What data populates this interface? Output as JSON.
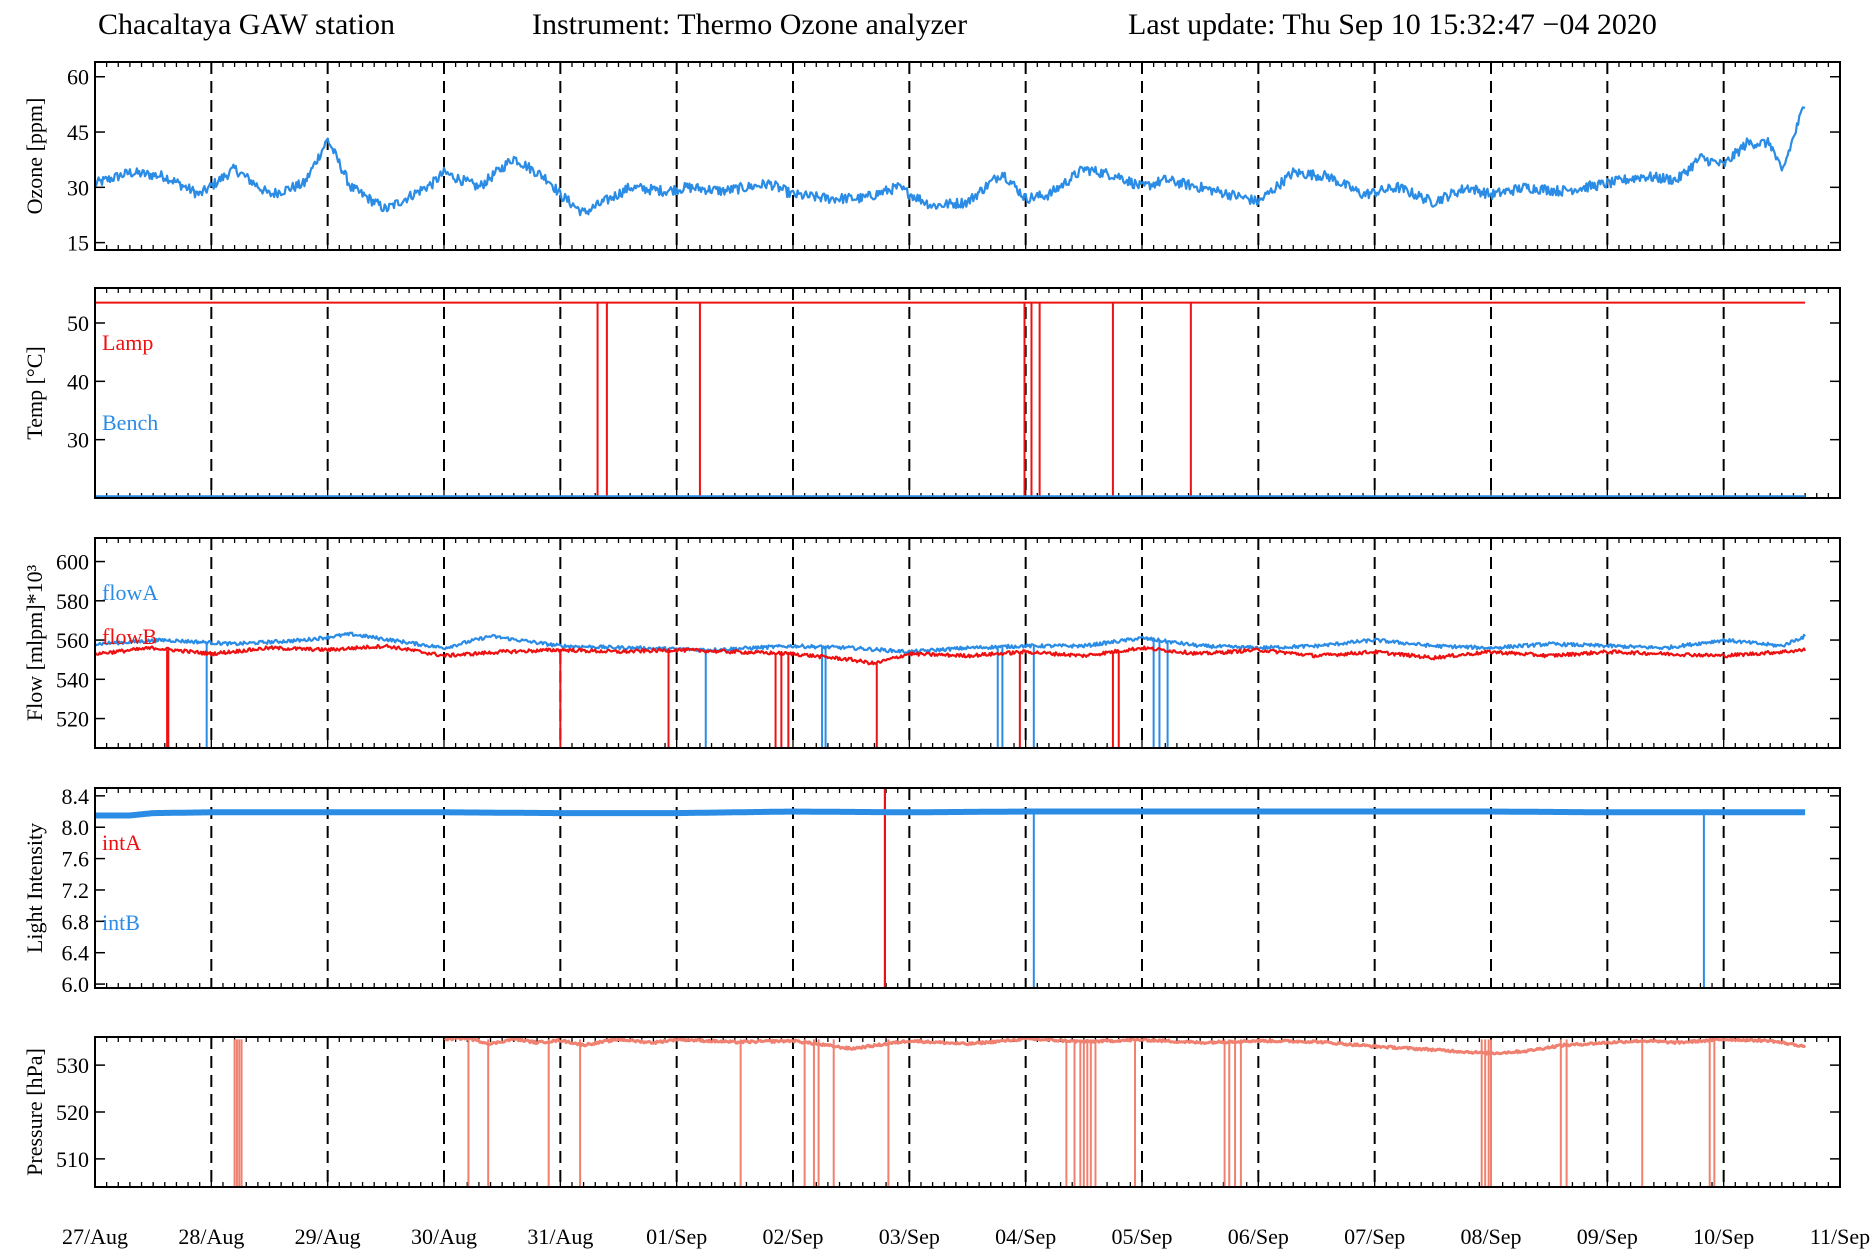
{
  "header": {
    "station": "Chacaltaya GAW station",
    "instrument": "Instrument: Thermo Ozone analyzer",
    "last_update": "Last update: Thu Sep 10 15:32:47 −04 2020"
  },
  "colors": {
    "blue": "#2b8ce6",
    "red": "#ee1111",
    "salmon": "#f08070",
    "grid": "#000000"
  },
  "x_ticks": [
    "27/Aug",
    "28/Aug",
    "29/Aug",
    "30/Aug",
    "31/Aug",
    "01/Sep",
    "02/Sep",
    "03/Sep",
    "04/Sep",
    "05/Sep",
    "06/Sep",
    "07/Sep",
    "08/Sep",
    "09/Sep",
    "10/Sep",
    "11/Sep"
  ],
  "chart_data": [
    {
      "type": "line",
      "ylabel": "Ozone [ppm]",
      "ylim": [
        13,
        64
      ],
      "yticks": [
        15,
        30,
        45,
        60
      ],
      "x_unit": "days since 27/Aug",
      "xlim": [
        0,
        15
      ],
      "series": [
        {
          "color": "blue",
          "noise": 1.4,
          "x": [
            0,
            0.3,
            0.6,
            0.9,
            1.2,
            1.5,
            1.8,
            2.0,
            2.2,
            2.5,
            2.9,
            3.0,
            3.3,
            3.6,
            3.9,
            4.0,
            4.2,
            4.6,
            4.9,
            5.1,
            5.4,
            5.8,
            6.0,
            6.3,
            6.6,
            6.9,
            7.2,
            7.5,
            7.8,
            8.0,
            8.2,
            8.5,
            8.8,
            9.0,
            9.2,
            9.5,
            9.9,
            10.0,
            10.3,
            10.6,
            10.9,
            11.2,
            11.5,
            11.8,
            12.0,
            12.3,
            12.6,
            13.0,
            13.3,
            13.6,
            13.8,
            14.0,
            14.2,
            14.4,
            14.5,
            14.7
          ],
          "values": [
            31,
            34,
            33,
            28,
            35,
            28,
            31,
            43,
            30,
            24,
            31,
            34,
            30,
            38,
            32,
            28,
            23,
            30,
            29,
            30,
            29,
            31,
            28,
            27,
            27,
            30,
            25,
            26,
            34,
            27,
            28,
            35,
            33,
            30,
            32,
            30,
            27,
            26,
            34,
            33,
            28,
            30,
            26,
            30,
            28,
            30,
            29,
            31,
            33,
            32,
            38,
            36,
            42,
            42,
            34,
            53
          ]
        }
      ]
    },
    {
      "type": "line",
      "ylabel": "Temp [°C]",
      "ylim": [
        20,
        56
      ],
      "yticks": [
        30,
        40,
        50
      ],
      "x_unit": "days since 27/Aug",
      "xlim": [
        0,
        15
      ],
      "series": [
        {
          "name": "Lamp",
          "color": "red",
          "baseline": 53.5,
          "dropouts": [
            4.32,
            4.4,
            5.2,
            7.99,
            8.05,
            8.12,
            8.75,
            9.42
          ],
          "drop_to": 20
        },
        {
          "name": "Bench",
          "color": "blue",
          "baseline": 20.3
        }
      ]
    },
    {
      "type": "line",
      "ylabel": "Flow [mlpm]*10³",
      "ylim": [
        505,
        612
      ],
      "yticks": [
        520,
        540,
        560,
        580,
        600
      ],
      "x_unit": "days since 27/Aug",
      "xlim": [
        0,
        15
      ],
      "series": [
        {
          "name": "flowA",
          "color": "blue",
          "x": [
            0,
            0.6,
            1.2,
            1.8,
            2.2,
            3.0,
            3.4,
            4.0,
            4.6,
            5.3,
            6.0,
            6.5,
            7.0,
            7.5,
            8.0,
            8.5,
            9.0,
            9.5,
            10.0,
            10.5,
            11.0,
            11.5,
            12.0,
            12.5,
            13.0,
            13.5,
            14.0,
            14.5,
            14.7
          ],
          "values": [
            558,
            560,
            558,
            560,
            563,
            556,
            562,
            557,
            556,
            555,
            557,
            556,
            554,
            556,
            557,
            557,
            561,
            557,
            556,
            557,
            560,
            557,
            556,
            558,
            557,
            556,
            560,
            557,
            562
          ],
          "dropouts": [
            0.96,
            5.25,
            6.25,
            6.28,
            7.76,
            7.8,
            8.07,
            9.1,
            9.15,
            9.22
          ],
          "drop_to": 505
        },
        {
          "name": "flowB",
          "color": "red",
          "x": [
            0,
            0.5,
            1.0,
            1.5,
            2.0,
            2.5,
            3.0,
            3.5,
            4.0,
            4.5,
            5.0,
            5.5,
            6.0,
            6.5,
            6.7,
            7.0,
            7.5,
            8.0,
            8.5,
            9.0,
            9.5,
            10.0,
            10.5,
            11.0,
            11.5,
            12.0,
            12.5,
            13.0,
            13.5,
            14.0,
            14.5,
            14.7
          ],
          "values": [
            553,
            556,
            553,
            556,
            555,
            557,
            552,
            554,
            555,
            554,
            555,
            554,
            553,
            550,
            548,
            553,
            552,
            554,
            552,
            556,
            553,
            555,
            552,
            554,
            551,
            554,
            552,
            554,
            553,
            552,
            554,
            555
          ],
          "dropouts": [
            0.62,
            0.63,
            4.0,
            4.93,
            5.85,
            5.9,
            5.96,
            6.72,
            7.95,
            8.75,
            8.8
          ],
          "drop_to": 505
        }
      ]
    },
    {
      "type": "line",
      "ylabel": "Light Intensity",
      "ylim": [
        5.95,
        8.5
      ],
      "yticks": [
        6.0,
        6.4,
        6.8,
        7.2,
        7.6,
        8.0,
        8.4
      ],
      "x_unit": "days since 27/Aug",
      "xlim": [
        0,
        15
      ],
      "series": [
        {
          "name": "intA",
          "color": "red",
          "spikes": [
            {
              "x": 6.79,
              "lo": 5.95,
              "hi": 8.5
            }
          ]
        },
        {
          "name": "intB",
          "color": "blue",
          "x": [
            0,
            0.3,
            0.5,
            1.0,
            2.0,
            3.0,
            4.0,
            5.0,
            6.0,
            7.0,
            8.0,
            9.0,
            10.0,
            11.0,
            12.0,
            13.0,
            14.0,
            14.7
          ],
          "values": [
            8.15,
            8.15,
            8.18,
            8.19,
            8.19,
            8.19,
            8.18,
            8.18,
            8.2,
            8.19,
            8.2,
            8.2,
            8.2,
            8.2,
            8.2,
            8.19,
            8.19,
            8.19
          ],
          "dropouts": [
            8.07,
            13.83
          ],
          "drop_to": 5.95
        }
      ]
    },
    {
      "type": "line",
      "ylabel": "Pressure  [hPa]",
      "ylim": [
        504,
        536
      ],
      "yticks": [
        510,
        520,
        530
      ],
      "x_unit": "days since 27/Aug",
      "xlim": [
        0,
        15
      ],
      "series": [
        {
          "color": "salmon",
          "x": [
            0,
            0.2,
            0.4,
            0.5,
            0.6,
            0.7,
            0.8,
            1.0,
            1.2,
            1.4,
            1.6,
            1.8,
            2.0,
            2.2,
            2.4,
            2.6,
            2.8,
            3.0,
            3.2,
            3.4,
            3.6,
            3.8,
            4.0,
            4.2,
            4.5,
            4.8,
            5.0,
            5.5,
            6.0,
            6.5,
            7.0,
            7.5,
            8.0,
            8.5,
            9.0,
            9.5,
            10.0,
            10.5,
            11.0,
            11.5,
            12.0,
            12.3,
            12.6,
            13.0,
            13.3,
            13.6,
            14.0,
            14.4,
            14.7
          ],
          "values": [
            null,
            null,
            null,
            null,
            null,
            null,
            null,
            null,
            null,
            null,
            null,
            null,
            null,
            null,
            null,
            null,
            null,
            535.5,
            535.8,
            534.5,
            535.6,
            534.8,
            535.3,
            534.3,
            535.5,
            534.8,
            535.5,
            534.9,
            535.2,
            533.5,
            535.2,
            534.5,
            535.6,
            535,
            535.4,
            534.8,
            535.2,
            535,
            534,
            533.3,
            532.5,
            533,
            534.2,
            534.8,
            535.2,
            534.8,
            535.5,
            535.2,
            534
          ]
        },
        {
          "color": "salmon",
          "dropouts": [
            1.2,
            1.22,
            1.24,
            1.26,
            3.21,
            3.38,
            3.9,
            4.17,
            5.55,
            6.1,
            6.18,
            6.22,
            6.35,
            6.82,
            8.35,
            8.42,
            8.47,
            8.5,
            8.53,
            8.56,
            8.6,
            8.94,
            9.71,
            9.75,
            9.8,
            9.85,
            11.92,
            11.95,
            11.98,
            12.0,
            12.6,
            12.65,
            13.3,
            13.88,
            13.92
          ],
          "drop_to": 504,
          "from": 535.5
        }
      ]
    }
  ]
}
